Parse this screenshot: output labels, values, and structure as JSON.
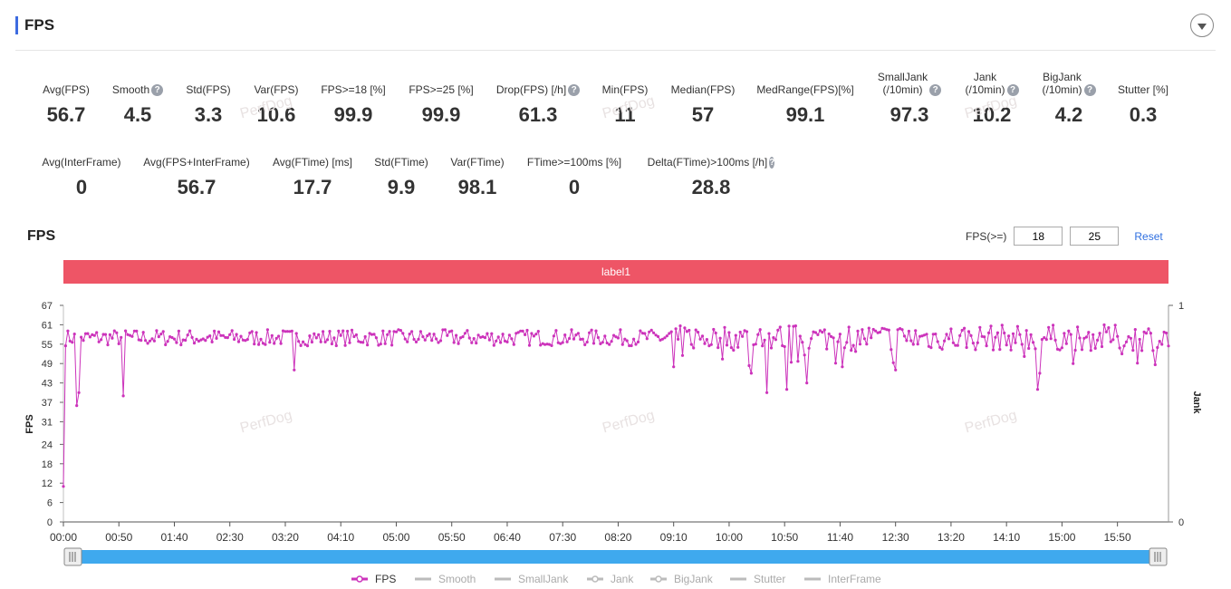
{
  "section_title": "FPS",
  "stats_row1": [
    {
      "label": "Avg(FPS)",
      "value": "56.7",
      "help": false
    },
    {
      "label": "Smooth",
      "value": "4.5",
      "help": true
    },
    {
      "label": "Std(FPS)",
      "value": "3.3",
      "help": false
    },
    {
      "label": "Var(FPS)",
      "value": "10.6",
      "help": false
    },
    {
      "label": "FPS>=18 [%]",
      "value": "99.9",
      "help": false
    },
    {
      "label": "FPS>=25 [%]",
      "value": "99.9",
      "help": false
    },
    {
      "label": "Drop(FPS) [/h]",
      "value": "61.3",
      "help": true
    },
    {
      "label": "Min(FPS)",
      "value": "11",
      "help": false
    },
    {
      "label": "Median(FPS)",
      "value": "57",
      "help": false
    },
    {
      "label": "MedRange(FPS)[%]",
      "value": "99.1",
      "help": false
    },
    {
      "label": "SmallJank\n(/10min)",
      "value": "97.3",
      "help": true
    },
    {
      "label": "Jank\n(/10min)",
      "value": "10.2",
      "help": true
    },
    {
      "label": "BigJank\n(/10min)",
      "value": "4.2",
      "help": true
    },
    {
      "label": "Stutter [%]",
      "value": "0.3",
      "help": false
    }
  ],
  "stats_row2": [
    {
      "label": "Avg(InterFrame)",
      "value": "0",
      "help": false
    },
    {
      "label": "Avg(FPS+InterFrame)",
      "value": "56.7",
      "help": false
    },
    {
      "label": "Avg(FTime) [ms]",
      "value": "17.7",
      "help": false
    },
    {
      "label": "Std(FTime)",
      "value": "9.9",
      "help": false
    },
    {
      "label": "Var(FTime)",
      "value": "98.1",
      "help": false
    },
    {
      "label": "FTime>=100ms [%]",
      "value": "0",
      "help": false
    },
    {
      "label": "Delta(FTime)>100ms [/h]",
      "value": "28.8",
      "help": true
    }
  ],
  "chart_header": {
    "title": "FPS",
    "filter_label": "FPS(>=)",
    "threshold1": "18",
    "threshold2": "25",
    "reset_label": "Reset"
  },
  "label_bar": "label1",
  "watermark": "PerfDog",
  "colors": {
    "accent": "#3d6be0",
    "label_bar": "#ee5566",
    "fps_series": "#cc33bb",
    "slider": "#3fa9ee",
    "legend_inactive": "#bbbbbb"
  },
  "chart_data": {
    "type": "line",
    "title": "FPS",
    "ylabel": "FPS",
    "y2label": "Jank",
    "yticks": [
      0,
      6,
      12,
      18,
      24,
      31,
      37,
      43,
      49,
      55,
      61,
      67
    ],
    "y2ticks": [
      0,
      1
    ],
    "ylim": [
      0,
      67
    ],
    "xticks": [
      "00:00",
      "00:50",
      "01:40",
      "02:30",
      "03:20",
      "04:10",
      "05:00",
      "05:50",
      "06:40",
      "07:30",
      "08:20",
      "09:10",
      "10:00",
      "10:50",
      "11:40",
      "12:30",
      "13:20",
      "14:10",
      "15:00",
      "15:50"
    ],
    "xlim": [
      "00:00",
      "16:36"
    ],
    "grid": false,
    "legend_position": "bottom",
    "legend": [
      {
        "name": "FPS",
        "active": true,
        "marker": "circle"
      },
      {
        "name": "Smooth",
        "active": false,
        "marker": "line"
      },
      {
        "name": "SmallJank",
        "active": false,
        "marker": "line"
      },
      {
        "name": "Jank",
        "active": false,
        "marker": "circle"
      },
      {
        "name": "BigJank",
        "active": false,
        "marker": "circle"
      },
      {
        "name": "Stutter",
        "active": false,
        "marker": "line"
      },
      {
        "name": "InterFrame",
        "active": false,
        "marker": "line"
      }
    ],
    "series": [
      {
        "name": "FPS",
        "baseline": 57,
        "spread": 2.5,
        "dips": [
          {
            "t": "00:00",
            "v": 11
          },
          {
            "t": "00:01",
            "v": 55
          },
          {
            "t": "00:12",
            "v": 36
          },
          {
            "t": "00:15",
            "v": 40
          },
          {
            "t": "00:54",
            "v": 39
          },
          {
            "t": "00:55",
            "v": 48
          },
          {
            "t": "03:29",
            "v": 47
          },
          {
            "t": "09:11",
            "v": 48
          },
          {
            "t": "10:20",
            "v": 46
          },
          {
            "t": "10:35",
            "v": 40
          },
          {
            "t": "10:52",
            "v": 41
          },
          {
            "t": "11:10",
            "v": 43
          },
          {
            "t": "12:30",
            "v": 47
          },
          {
            "t": "14:38",
            "v": 41
          },
          {
            "t": "14:40",
            "v": 46
          },
          {
            "t": "15:10",
            "v": 49
          },
          {
            "t": "15:55",
            "v": 52
          }
        ]
      }
    ]
  }
}
